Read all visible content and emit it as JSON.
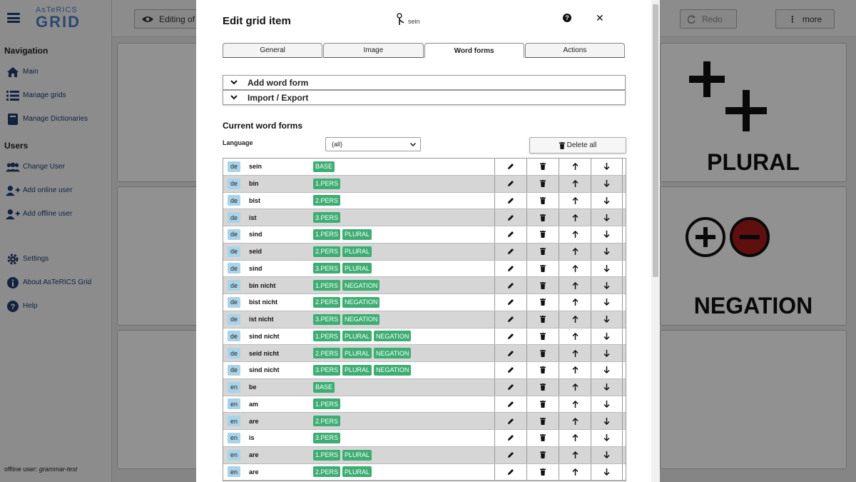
{
  "app": {
    "logo_line1": "AsTeRICS",
    "logo_line2": "GRID"
  },
  "sidebar": {
    "nav_heading": "Navigation",
    "nav_items": [
      {
        "label": "Main",
        "icon": "home-icon"
      },
      {
        "label": "Manage grids",
        "icon": "list-icon"
      },
      {
        "label": "Manage Dictionaries",
        "icon": "book-icon"
      }
    ],
    "users_heading": "Users",
    "user_items": [
      {
        "label": "Change User",
        "icon": "users-icon"
      },
      {
        "label": "Add online user",
        "icon": "user-plus-icon"
      },
      {
        "label": "Add offline user",
        "icon": "user-plus-icon"
      }
    ],
    "misc_items": [
      {
        "label": "Settings",
        "icon": "gear-icon"
      },
      {
        "label": "About AsTeRICS Grid",
        "icon": "info-icon"
      },
      {
        "label": "Help",
        "icon": "question-icon"
      }
    ],
    "offline_user_prefix": "offline user:",
    "offline_user_name": "grammar-test"
  },
  "toolbar": {
    "editing_label": "Editing of",
    "redo_label": "Redo",
    "more_label": "more"
  },
  "grid": {
    "cell_plural_label": "PLURAL",
    "cell_negation_label": "NEGATION"
  },
  "modal": {
    "title": "Edit grid item",
    "word": "sein",
    "tabs": [
      "General",
      "Image",
      "Word forms",
      "Actions"
    ],
    "active_tab": "Word forms",
    "add_word_form": "Add word form",
    "import_export": "Import / Export",
    "current_word_forms": "Current word forms",
    "language_label": "Language",
    "language_selected": "(all)",
    "delete_all": "Delete all",
    "rows": [
      {
        "lang": "de",
        "word": "sein",
        "tags": [
          "BASE"
        ]
      },
      {
        "lang": "de",
        "word": "bin",
        "tags": [
          "1.PERS"
        ]
      },
      {
        "lang": "de",
        "word": "bist",
        "tags": [
          "2.PERS"
        ]
      },
      {
        "lang": "de",
        "word": "ist",
        "tags": [
          "3.PERS"
        ]
      },
      {
        "lang": "de",
        "word": "sind",
        "tags": [
          "1.PERS",
          "PLURAL"
        ]
      },
      {
        "lang": "de",
        "word": "seid",
        "tags": [
          "2.PERS",
          "PLURAL"
        ]
      },
      {
        "lang": "de",
        "word": "sind",
        "tags": [
          "3.PERS",
          "PLURAL"
        ]
      },
      {
        "lang": "de",
        "word": "bin nicht",
        "tags": [
          "1.PERS",
          "NEGATION"
        ]
      },
      {
        "lang": "de",
        "word": "bist nicht",
        "tags": [
          "2.PERS",
          "NEGATION"
        ]
      },
      {
        "lang": "de",
        "word": "ist nicht",
        "tags": [
          "3.PERS",
          "NEGATION"
        ]
      },
      {
        "lang": "de",
        "word": "sind nicht",
        "tags": [
          "1.PERS",
          "PLURAL",
          "NEGATION"
        ]
      },
      {
        "lang": "de",
        "word": "seid nicht",
        "tags": [
          "2.PERS",
          "PLURAL",
          "NEGATION"
        ]
      },
      {
        "lang": "de",
        "word": "sind nicht",
        "tags": [
          "3.PERS",
          "PLURAL",
          "NEGATION"
        ]
      },
      {
        "lang": "en",
        "word": "be",
        "tags": [
          "BASE"
        ]
      },
      {
        "lang": "en",
        "word": "am",
        "tags": [
          "1.PERS"
        ]
      },
      {
        "lang": "en",
        "word": "are",
        "tags": [
          "2.PERS"
        ]
      },
      {
        "lang": "en",
        "word": "is",
        "tags": [
          "3.PERS"
        ]
      },
      {
        "lang": "en",
        "word": "are",
        "tags": [
          "1.PERS",
          "PLURAL"
        ]
      },
      {
        "lang": "en",
        "word": "are",
        "tags": [
          "2.PERS",
          "PLURAL"
        ]
      }
    ]
  },
  "colors": {
    "tag_green": "#3dad72",
    "lang_badge_blue": "#a9d3e8",
    "negation_red": "#a61b1b"
  }
}
